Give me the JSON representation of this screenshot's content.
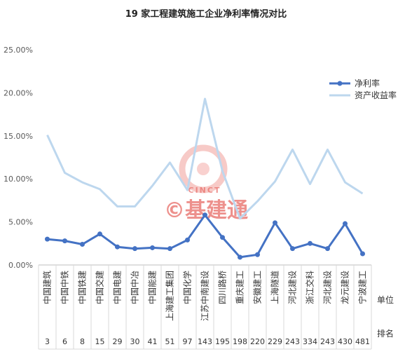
{
  "chart_data": {
    "type": "line",
    "title": "19 家工程建筑施工企业净利率情况对比",
    "categories": [
      "中国建筑",
      "中国中铁",
      "中国铁建",
      "中国交建",
      "中国电建",
      "中国中冶",
      "中国能建",
      "上海建工集团",
      "中国化学",
      "江苏中南建设",
      "四川路桥",
      "重庆建工",
      "安徽建工",
      "上海隧道",
      "河北建设",
      "浙江交科",
      "河北建设",
      "龙元建设",
      "宁波建工"
    ],
    "ranks": [
      "3",
      "6",
      "8",
      "15",
      "29",
      "30",
      "41",
      "51",
      "97",
      "143",
      "195",
      "198",
      "220",
      "229",
      "243",
      "334",
      "243",
      "430",
      "481"
    ],
    "unit_label": "单位",
    "rank_label": "排名",
    "series": [
      {
        "name": "净利率",
        "color": "#4472c4",
        "values": [
          0.03,
          0.028,
          0.024,
          0.036,
          0.021,
          0.019,
          0.02,
          0.019,
          0.029,
          0.058,
          0.032,
          0.009,
          0.012,
          0.049,
          0.019,
          0.025,
          0.019,
          0.048,
          0.013
        ]
      },
      {
        "name": "资产收益率",
        "color": "#bdd7ee",
        "values": [
          0.151,
          0.107,
          0.096,
          0.088,
          0.068,
          0.068,
          0.092,
          0.119,
          0.087,
          0.193,
          0.109,
          0.054,
          0.074,
          0.097,
          0.134,
          0.094,
          0.134,
          0.096,
          0.083
        ]
      }
    ],
    "ylim": [
      0,
      0.25
    ],
    "yticks": [
      "0.00%",
      "5.00%",
      "10.00%",
      "15.00%",
      "20.00%",
      "25.00%"
    ],
    "legend_position": "right",
    "grid": false
  },
  "watermark": {
    "brand": "CINCT",
    "text": "©基建通",
    "color": "#e86b66"
  }
}
